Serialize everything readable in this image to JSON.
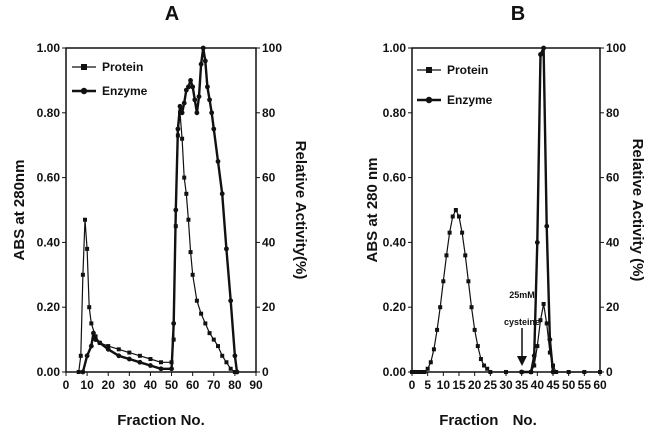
{
  "chart_data": [
    {
      "type": "line",
      "panel": "A",
      "xlabel": "Fraction No.",
      "ylabel": "ABS at 280nm",
      "y2label": "Relative Activity(%)",
      "xlim": [
        0,
        90
      ],
      "ylim": [
        0,
        1.0
      ],
      "y2lim": [
        0,
        100
      ],
      "x_ticks": [
        "0",
        "10",
        "20",
        "30",
        "40",
        "50",
        "60",
        "70",
        "80",
        "90"
      ],
      "y_ticks": [
        "0.00",
        "0.20",
        "0.40",
        "0.60",
        "0.80",
        "1.00"
      ],
      "y2_ticks": [
        "0",
        "20",
        "40",
        "60",
        "80",
        "100"
      ],
      "legend_position": "top-left",
      "grid": false,
      "series": [
        {
          "name": "Protein",
          "axis": "left",
          "marker": "square",
          "line_weight": "thin",
          "points": [
            [
              6,
              0.0
            ],
            [
              7,
              0.05
            ],
            [
              8,
              0.3
            ],
            [
              9,
              0.47
            ],
            [
              10,
              0.38
            ],
            [
              11,
              0.2
            ],
            [
              12,
              0.15
            ],
            [
              14,
              0.11
            ],
            [
              16,
              0.09
            ],
            [
              20,
              0.08
            ],
            [
              25,
              0.07
            ],
            [
              30,
              0.06
            ],
            [
              35,
              0.05
            ],
            [
              40,
              0.04
            ],
            [
              45,
              0.03
            ],
            [
              50,
              0.03
            ],
            [
              51,
              0.1
            ],
            [
              52,
              0.45
            ],
            [
              53,
              0.73
            ],
            [
              54,
              0.8
            ],
            [
              55,
              0.72
            ],
            [
              56,
              0.6
            ],
            [
              57,
              0.55
            ],
            [
              58,
              0.47
            ],
            [
              59,
              0.37
            ],
            [
              60,
              0.3
            ],
            [
              62,
              0.22
            ],
            [
              64,
              0.18
            ],
            [
              66,
              0.15
            ],
            [
              68,
              0.12
            ],
            [
              70,
              0.1
            ],
            [
              72,
              0.08
            ],
            [
              74,
              0.05
            ],
            [
              76,
              0.03
            ],
            [
              78,
              0.01
            ],
            [
              80,
              0.0
            ]
          ]
        },
        {
          "name": "Enzyme",
          "axis": "right",
          "marker": "circle",
          "line_weight": "thick",
          "points": [
            [
              8,
              0
            ],
            [
              10,
              5
            ],
            [
              12,
              8
            ],
            [
              13,
              12
            ],
            [
              14,
              10
            ],
            [
              16,
              9
            ],
            [
              20,
              7
            ],
            [
              25,
              5
            ],
            [
              30,
              4
            ],
            [
              35,
              3
            ],
            [
              40,
              2
            ],
            [
              45,
              1
            ],
            [
              50,
              1
            ],
            [
              51,
              15
            ],
            [
              52,
              50
            ],
            [
              53,
              75
            ],
            [
              54,
              82
            ],
            [
              55,
              80
            ],
            [
              56,
              83
            ],
            [
              57,
              87
            ],
            [
              58,
              88
            ],
            [
              59,
              90
            ],
            [
              60,
              88
            ],
            [
              61,
              84
            ],
            [
              62,
              80
            ],
            [
              63,
              85
            ],
            [
              64,
              95
            ],
            [
              65,
              100
            ],
            [
              66,
              96
            ],
            [
              67,
              88
            ],
            [
              68,
              84
            ],
            [
              69,
              80
            ],
            [
              70,
              75
            ],
            [
              72,
              65
            ],
            [
              74,
              55
            ],
            [
              76,
              38
            ],
            [
              78,
              22
            ],
            [
              80,
              5
            ],
            [
              81,
              0
            ]
          ]
        }
      ]
    },
    {
      "type": "line",
      "panel": "B",
      "xlabel": "Fraction No.",
      "ylabel": "ABS at 280 nm",
      "y2label": "Relative Activity (%)",
      "xlim": [
        0,
        60
      ],
      "ylim": [
        0,
        1.0
      ],
      "y2lim": [
        0,
        100
      ],
      "x_ticks": [
        "0",
        "5",
        "10",
        "15",
        "20",
        "25",
        "30",
        "35",
        "40",
        "45",
        "50",
        "55",
        "60"
      ],
      "y_ticks": [
        "0.00",
        "0.20",
        "0.40",
        "0.60",
        "0.80",
        "1.00"
      ],
      "y2_ticks": [
        "0",
        "20",
        "40",
        "60",
        "80",
        "100"
      ],
      "legend_position": "top-left",
      "grid": false,
      "annotation": {
        "text_line1": "25mM",
        "text_line2": "cysteine",
        "x": 35
      },
      "series": [
        {
          "name": "Protein",
          "axis": "left",
          "marker": "square",
          "line_weight": "thin",
          "points": [
            [
              0,
              0
            ],
            [
              1,
              0
            ],
            [
              2,
              0
            ],
            [
              3,
              0
            ],
            [
              4,
              0
            ],
            [
              5,
              0.01
            ],
            [
              6,
              0.03
            ],
            [
              7,
              0.07
            ],
            [
              8,
              0.13
            ],
            [
              9,
              0.2
            ],
            [
              10,
              0.28
            ],
            [
              11,
              0.36
            ],
            [
              12,
              0.43
            ],
            [
              13,
              0.48
            ],
            [
              14,
              0.5
            ],
            [
              15,
              0.48
            ],
            [
              16,
              0.43
            ],
            [
              17,
              0.36
            ],
            [
              18,
              0.28
            ],
            [
              19,
              0.2
            ],
            [
              20,
              0.13
            ],
            [
              21,
              0.08
            ],
            [
              22,
              0.04
            ],
            [
              23,
              0.02
            ],
            [
              24,
              0.01
            ],
            [
              25,
              0
            ],
            [
              30,
              0
            ],
            [
              35,
              0
            ],
            [
              38,
              0
            ],
            [
              39,
              0.02
            ],
            [
              40,
              0.08
            ],
            [
              41,
              0.16
            ],
            [
              42,
              0.21
            ],
            [
              43,
              0.15
            ],
            [
              44,
              0.06
            ],
            [
              45,
              0.02
            ],
            [
              46,
              0
            ],
            [
              50,
              0
            ],
            [
              55,
              0
            ],
            [
              60,
              0
            ]
          ]
        },
        {
          "name": "Enzyme",
          "axis": "right",
          "marker": "circle",
          "line_weight": "thick",
          "points": [
            [
              35,
              0
            ],
            [
              38,
              0
            ],
            [
              39,
              5
            ],
            [
              40,
              40
            ],
            [
              41,
              98
            ],
            [
              42,
              100
            ],
            [
              43,
              45
            ],
            [
              44,
              10
            ],
            [
              45,
              0
            ]
          ]
        }
      ]
    }
  ]
}
